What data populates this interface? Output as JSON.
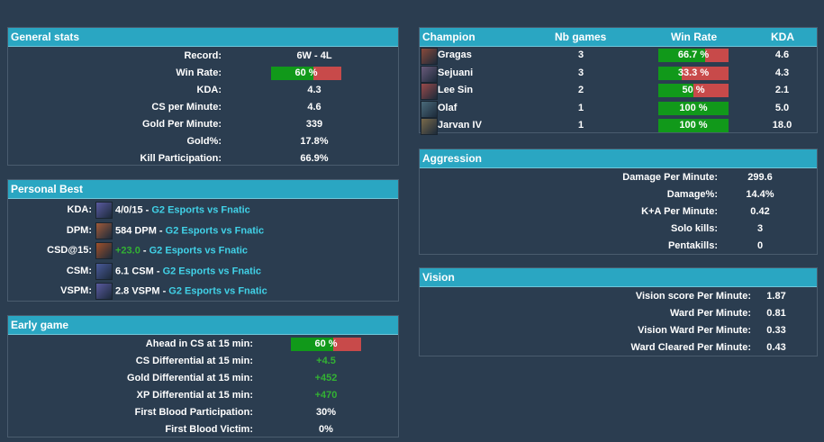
{
  "general": {
    "title": "General stats",
    "rows": [
      {
        "label": "Record:",
        "value": "6W - 4L"
      },
      {
        "label": "Win Rate:",
        "value": "60 %",
        "bar": 0.6
      },
      {
        "label": "KDA:",
        "value": "4.3"
      },
      {
        "label": "CS per Minute:",
        "value": "4.6"
      },
      {
        "label": "Gold Per Minute:",
        "value": "339"
      },
      {
        "label": "Gold%:",
        "value": "17.8%"
      },
      {
        "label": "Kill Participation:",
        "value": "66.9%"
      }
    ]
  },
  "personal_best": {
    "title": "Personal Best",
    "rows": [
      {
        "label": "KDA:",
        "stat": "4/0/15 - ",
        "match": "G2 Esports vs Fnatic",
        "icon": "champion-portrait-icon",
        "color": "#5a5aa0",
        "green": false
      },
      {
        "label": "DPM:",
        "stat": "584 DPM - ",
        "match": "G2 Esports vs Fnatic",
        "icon": "champion-portrait-icon",
        "color": "#a05a3a",
        "green": false
      },
      {
        "label": "CSD@15:",
        "stat": "+23.0",
        "sep": " - ",
        "match": "G2 Esports vs Fnatic",
        "icon": "champion-portrait-icon",
        "color": "#a0502a",
        "green": true
      },
      {
        "label": "CSM:",
        "stat": "6.1 CSM - ",
        "match": "G2 Esports vs Fnatic",
        "icon": "champion-portrait-icon",
        "color": "#4a5a9a",
        "green": false
      },
      {
        "label": "VSPM:",
        "stat": "2.8 VSPM - ",
        "match": "G2 Esports vs Fnatic",
        "icon": "champion-portrait-icon",
        "color": "#5a5aa0",
        "green": false
      }
    ]
  },
  "early": {
    "title": "Early game",
    "rows": [
      {
        "label": "Ahead in CS at 15 min:",
        "value": "60 %",
        "bar": 0.6
      },
      {
        "label": "CS Differential at 15 min:",
        "value": "+4.5",
        "green": true
      },
      {
        "label": "Gold Differential at 15 min:",
        "value": "+452",
        "green": true
      },
      {
        "label": "XP Differential at 15 min:",
        "value": "+470",
        "green": true
      },
      {
        "label": "First Blood Participation:",
        "value": "30%"
      },
      {
        "label": "First Blood Victim:",
        "value": "0%"
      }
    ]
  },
  "champions": {
    "headers": {
      "champion": "Champion",
      "games": "Nb games",
      "winrate": "Win Rate",
      "kda": "KDA"
    },
    "rows": [
      {
        "name": "Gragas",
        "games": "3",
        "winrate": "66.7 %",
        "wr": 0.667,
        "kda": "4.6",
        "color": "#8a4a3a"
      },
      {
        "name": "Sejuani",
        "games": "3",
        "winrate": "33.3 %",
        "wr": 0.333,
        "kda": "4.3",
        "color": "#6a5a7a"
      },
      {
        "name": "Lee Sin",
        "games": "2",
        "winrate": "50 %",
        "wr": 0.5,
        "kda": "2.1",
        "color": "#9a4a4a"
      },
      {
        "name": "Olaf",
        "games": "1",
        "winrate": "100 %",
        "wr": 1.0,
        "kda": "5.0",
        "color": "#4a6a7a"
      },
      {
        "name": "Jarvan IV",
        "games": "1",
        "winrate": "100 %",
        "wr": 1.0,
        "kda": "18.0",
        "color": "#7a6a4a"
      }
    ]
  },
  "aggression": {
    "title": "Aggression",
    "rows": [
      {
        "label": "Damage Per Minute:",
        "value": "299.6"
      },
      {
        "label": "Damage%:",
        "value": "14.4%"
      },
      {
        "label": "K+A Per Minute:",
        "value": "0.42"
      },
      {
        "label": "Solo kills:",
        "value": "3"
      },
      {
        "label": "Pentakills:",
        "value": "0"
      }
    ]
  },
  "vision": {
    "title": "Vision",
    "rows": [
      {
        "label": "Vision score Per Minute:",
        "value": "1.87"
      },
      {
        "label": "Ward Per Minute:",
        "value": "0.81"
      },
      {
        "label": "Vision Ward Per Minute:",
        "value": "0.33"
      },
      {
        "label": "Ward Cleared Per Minute:",
        "value": "0.43"
      }
    ]
  },
  "colors": {
    "bar_green": "#11991a",
    "bar_red": "#c84a4a",
    "header": "#2aa6c2",
    "positive": "#33b233",
    "link": "#41d2e8"
  }
}
